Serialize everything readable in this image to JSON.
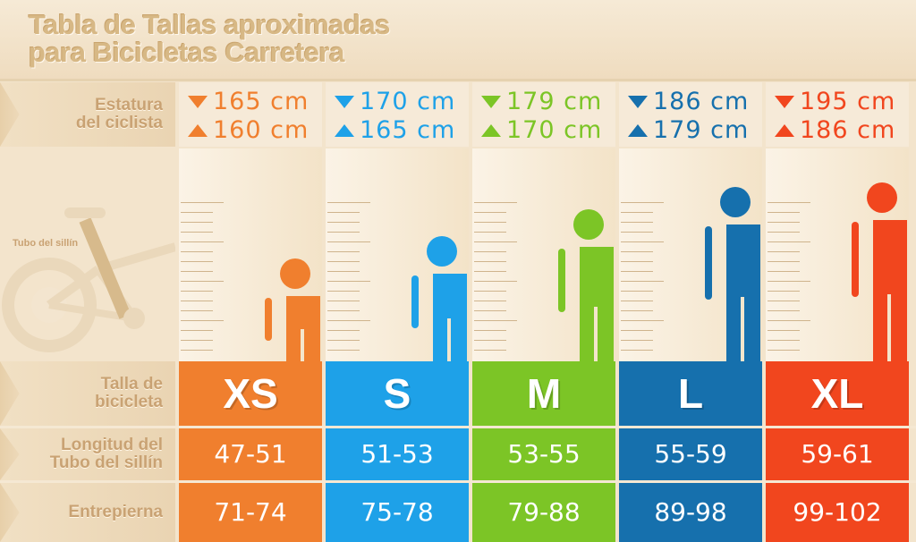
{
  "title": {
    "line1": "Tabla de Tallas aproximadas",
    "line2": "para Bicicletas Carretera"
  },
  "row_labels": {
    "stature_1": "Estatura",
    "stature_2": "del ciclista",
    "size_1": "Talla de",
    "size_2": "bicicleta",
    "seat_1": "Longitud del",
    "seat_2": "Tubo del sillín",
    "inseam": "Entrepierna"
  },
  "bike": {
    "label": "Tubo del sillín"
  },
  "columns": [
    {
      "size": "XS",
      "max": "165 cm",
      "min": "160 cm",
      "seat_tube": "47-51",
      "inseam": "71-74",
      "color": "#f07f2e",
      "icon": "person-icon"
    },
    {
      "size": "S",
      "max": "170 cm",
      "min": "165 cm",
      "seat_tube": "51-53",
      "inseam": "75-78",
      "color": "#1ea1e8",
      "icon": "person-icon"
    },
    {
      "size": "M",
      "max": "179 cm",
      "min": "170 cm",
      "seat_tube": "53-55",
      "inseam": "79-88",
      "color": "#7cc526",
      "icon": "person-icon"
    },
    {
      "size": "L",
      "max": "186 cm",
      "min": "179 cm",
      "seat_tube": "55-59",
      "inseam": "89-98",
      "color": "#1670ad",
      "icon": "person-icon"
    },
    {
      "size": "XL",
      "max": "195 cm",
      "min": "186 cm",
      "seat_tube": "59-61",
      "inseam": "99-102",
      "color": "#f1461e",
      "icon": "person-icon"
    }
  ]
}
